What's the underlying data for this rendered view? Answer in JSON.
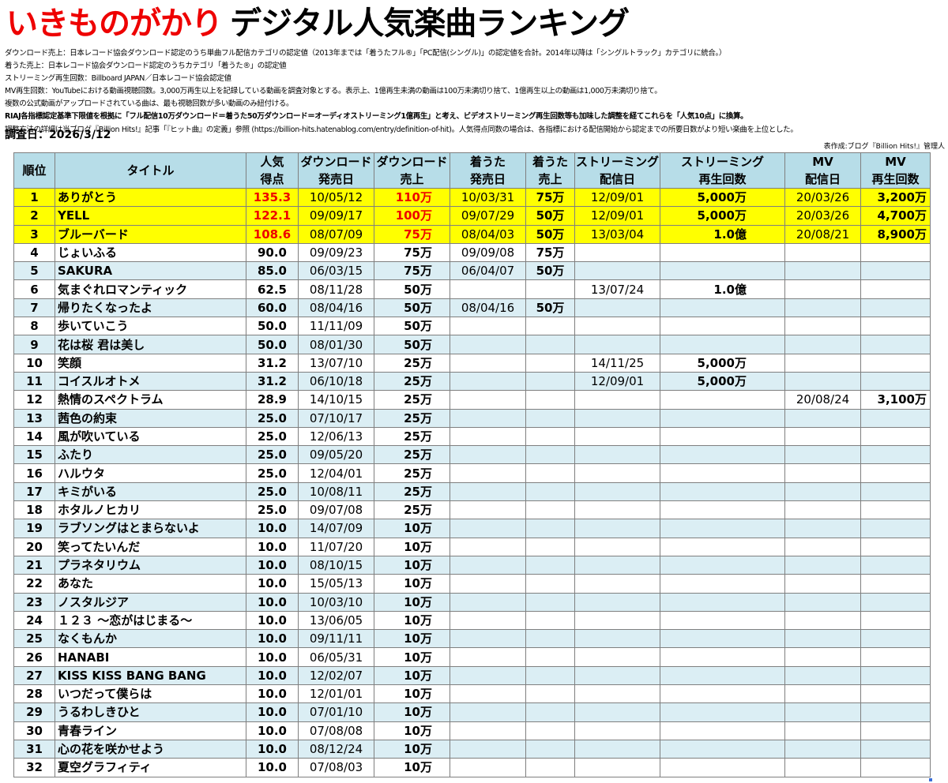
{
  "title": {
    "artist": "いきものがかり",
    "rest": "デジタル人気楽曲ランキング"
  },
  "notes": [
    "ダウンロード売上：日本レコード協会ダウンロード認定のうち単曲フル配信カテゴリの認定値（2013年までは「着うたフル®」「PC配信(シングル)」の認定値を合計。2014年以降は「シングルトラック」カテゴリに統合。）",
    "着うた売上：日本レコード協会ダウンロード認定のうちカテゴリ「着うた®」の認定値",
    "ストリーミング再生回数：Billboard JAPAN／日本レコード協会認定値",
    "MV再生回数：YouTubeにおける動画視聴回数。3,000万再生以上を記録している動画を調査対象とする。表示上、1億再生未満の動画は100万未満切り捨て、1億再生以上の動画は1,000万未満切り捨て。",
    "複数の公式動画がアップロードされている曲は、最も視聴回数が多い動画のみ紐付ける。",
    "RIAJ各指標認定基準下限値を根拠に「フル配信10万ダウンロード＝着うた50万ダウンロード＝オーディオストリーミング1億再生」と考え、ビデオストリーミング再生回数等も加味した調整を経てこれらを「人気10点」に換算。",
    "調整方法の詳細は当ブログ『Billion Hits!』記事「『ヒット曲』の定義」参照 (https://billion-hits.hatenablog.com/entry/definition-of-hit)。人気得点同数の場合は、各指標における配信開始から認定までの所要日数がより短い楽曲を上位とした。"
  ],
  "survey_date": "調査日：2026/3/12",
  "credit": "表作成:ブログ『Billion Hits!』管理人",
  "table": {
    "headers": {
      "rank": "順位",
      "title": "タイトル",
      "score": [
        "人気",
        "得点"
      ],
      "dl_date": [
        "ダウンロード",
        "発売日"
      ],
      "dl_sales": [
        "ダウンロード",
        "売上"
      ],
      "chaku_date": [
        "着うた",
        "発売日"
      ],
      "chaku_sales": [
        "着うた",
        "売上"
      ],
      "st_date": [
        "ストリーミング",
        "配信日"
      ],
      "st_plays": [
        "ストリーミング",
        "再生回数"
      ],
      "mv_date": [
        "MV",
        "配信日"
      ],
      "mv_plays": [
        "MV",
        "再生回数"
      ]
    },
    "rows": [
      {
        "rank": "1",
        "title": "ありがとう",
        "score": "135.3",
        "dl_date": "10/05/12",
        "dl_sales": "110万",
        "chaku_date": "10/03/31",
        "chaku_sales": "75万",
        "st_date": "12/09/01",
        "st_plays": "5,000万",
        "mv_date": "20/03/26",
        "mv_plays": "3,200万"
      },
      {
        "rank": "2",
        "title": "YELL",
        "score": "122.1",
        "dl_date": "09/09/17",
        "dl_sales": "100万",
        "chaku_date": "09/07/29",
        "chaku_sales": "50万",
        "st_date": "12/09/01",
        "st_plays": "5,000万",
        "mv_date": "20/03/26",
        "mv_plays": "4,700万"
      },
      {
        "rank": "3",
        "title": "ブルーバード",
        "score": "108.6",
        "dl_date": "08/07/09",
        "dl_sales": "75万",
        "chaku_date": "08/04/03",
        "chaku_sales": "50万",
        "st_date": "13/03/04",
        "st_plays": "1.0億",
        "mv_date": "20/08/21",
        "mv_plays": "8,900万"
      },
      {
        "rank": "4",
        "title": "じょいふる",
        "score": "90.0",
        "dl_date": "09/09/23",
        "dl_sales": "75万",
        "chaku_date": "09/09/08",
        "chaku_sales": "75万",
        "st_date": "",
        "st_plays": "",
        "mv_date": "",
        "mv_plays": ""
      },
      {
        "rank": "5",
        "title": "SAKURA",
        "score": "85.0",
        "dl_date": "06/03/15",
        "dl_sales": "75万",
        "chaku_date": "06/04/07",
        "chaku_sales": "50万",
        "st_date": "",
        "st_plays": "",
        "mv_date": "",
        "mv_plays": ""
      },
      {
        "rank": "6",
        "title": "気まぐれロマンティック",
        "score": "62.5",
        "dl_date": "08/11/28",
        "dl_sales": "50万",
        "chaku_date": "",
        "chaku_sales": "",
        "st_date": "13/07/24",
        "st_plays": "1.0億",
        "mv_date": "",
        "mv_plays": ""
      },
      {
        "rank": "7",
        "title": "帰りたくなったよ",
        "score": "60.0",
        "dl_date": "08/04/16",
        "dl_sales": "50万",
        "chaku_date": "08/04/16",
        "chaku_sales": "50万",
        "st_date": "",
        "st_plays": "",
        "mv_date": "",
        "mv_plays": ""
      },
      {
        "rank": "8",
        "title": "歩いていこう",
        "score": "50.0",
        "dl_date": "11/11/09",
        "dl_sales": "50万",
        "chaku_date": "",
        "chaku_sales": "",
        "st_date": "",
        "st_plays": "",
        "mv_date": "",
        "mv_plays": ""
      },
      {
        "rank": "9",
        "title": "花は桜 君は美し",
        "score": "50.0",
        "dl_date": "08/01/30",
        "dl_sales": "50万",
        "chaku_date": "",
        "chaku_sales": "",
        "st_date": "",
        "st_plays": "",
        "mv_date": "",
        "mv_plays": ""
      },
      {
        "rank": "10",
        "title": "笑顔",
        "score": "31.2",
        "dl_date": "13/07/10",
        "dl_sales": "25万",
        "chaku_date": "",
        "chaku_sales": "",
        "st_date": "14/11/25",
        "st_plays": "5,000万",
        "mv_date": "",
        "mv_plays": ""
      },
      {
        "rank": "11",
        "title": "コイスルオトメ",
        "score": "31.2",
        "dl_date": "06/10/18",
        "dl_sales": "25万",
        "chaku_date": "",
        "chaku_sales": "",
        "st_date": "12/09/01",
        "st_plays": "5,000万",
        "mv_date": "",
        "mv_plays": ""
      },
      {
        "rank": "12",
        "title": "熱情のスペクトラム",
        "score": "28.9",
        "dl_date": "14/10/15",
        "dl_sales": "25万",
        "chaku_date": "",
        "chaku_sales": "",
        "st_date": "",
        "st_plays": "",
        "mv_date": "20/08/24",
        "mv_plays": "3,100万"
      },
      {
        "rank": "13",
        "title": "茜色の約束",
        "score": "25.0",
        "dl_date": "07/10/17",
        "dl_sales": "25万",
        "chaku_date": "",
        "chaku_sales": "",
        "st_date": "",
        "st_plays": "",
        "mv_date": "",
        "mv_plays": ""
      },
      {
        "rank": "14",
        "title": "風が吹いている",
        "score": "25.0",
        "dl_date": "12/06/13",
        "dl_sales": "25万",
        "chaku_date": "",
        "chaku_sales": "",
        "st_date": "",
        "st_plays": "",
        "mv_date": "",
        "mv_plays": ""
      },
      {
        "rank": "15",
        "title": "ふたり",
        "score": "25.0",
        "dl_date": "09/05/20",
        "dl_sales": "25万",
        "chaku_date": "",
        "chaku_sales": "",
        "st_date": "",
        "st_plays": "",
        "mv_date": "",
        "mv_plays": ""
      },
      {
        "rank": "16",
        "title": "ハルウタ",
        "score": "25.0",
        "dl_date": "12/04/01",
        "dl_sales": "25万",
        "chaku_date": "",
        "chaku_sales": "",
        "st_date": "",
        "st_plays": "",
        "mv_date": "",
        "mv_plays": ""
      },
      {
        "rank": "17",
        "title": "キミがいる",
        "score": "25.0",
        "dl_date": "10/08/11",
        "dl_sales": "25万",
        "chaku_date": "",
        "chaku_sales": "",
        "st_date": "",
        "st_plays": "",
        "mv_date": "",
        "mv_plays": ""
      },
      {
        "rank": "18",
        "title": "ホタルノヒカリ",
        "score": "25.0",
        "dl_date": "09/07/08",
        "dl_sales": "25万",
        "chaku_date": "",
        "chaku_sales": "",
        "st_date": "",
        "st_plays": "",
        "mv_date": "",
        "mv_plays": ""
      },
      {
        "rank": "19",
        "title": "ラブソングはとまらないよ",
        "score": "10.0",
        "dl_date": "14/07/09",
        "dl_sales": "10万",
        "chaku_date": "",
        "chaku_sales": "",
        "st_date": "",
        "st_plays": "",
        "mv_date": "",
        "mv_plays": ""
      },
      {
        "rank": "20",
        "title": "笑ってたいんだ",
        "score": "10.0",
        "dl_date": "11/07/20",
        "dl_sales": "10万",
        "chaku_date": "",
        "chaku_sales": "",
        "st_date": "",
        "st_plays": "",
        "mv_date": "",
        "mv_plays": ""
      },
      {
        "rank": "21",
        "title": "プラネタリウム",
        "score": "10.0",
        "dl_date": "08/10/15",
        "dl_sales": "10万",
        "chaku_date": "",
        "chaku_sales": "",
        "st_date": "",
        "st_plays": "",
        "mv_date": "",
        "mv_plays": ""
      },
      {
        "rank": "22",
        "title": "あなた",
        "score": "10.0",
        "dl_date": "15/05/13",
        "dl_sales": "10万",
        "chaku_date": "",
        "chaku_sales": "",
        "st_date": "",
        "st_plays": "",
        "mv_date": "",
        "mv_plays": ""
      },
      {
        "rank": "23",
        "title": "ノスタルジア",
        "score": "10.0",
        "dl_date": "10/03/10",
        "dl_sales": "10万",
        "chaku_date": "",
        "chaku_sales": "",
        "st_date": "",
        "st_plays": "",
        "mv_date": "",
        "mv_plays": ""
      },
      {
        "rank": "24",
        "title": "１２３ ～恋がはじまる～",
        "score": "10.0",
        "dl_date": "13/06/05",
        "dl_sales": "10万",
        "chaku_date": "",
        "chaku_sales": "",
        "st_date": "",
        "st_plays": "",
        "mv_date": "",
        "mv_plays": ""
      },
      {
        "rank": "25",
        "title": "なくもんか",
        "score": "10.0",
        "dl_date": "09/11/11",
        "dl_sales": "10万",
        "chaku_date": "",
        "chaku_sales": "",
        "st_date": "",
        "st_plays": "",
        "mv_date": "",
        "mv_plays": ""
      },
      {
        "rank": "26",
        "title": "HANABI",
        "score": "10.0",
        "dl_date": "06/05/31",
        "dl_sales": "10万",
        "chaku_date": "",
        "chaku_sales": "",
        "st_date": "",
        "st_plays": "",
        "mv_date": "",
        "mv_plays": ""
      },
      {
        "rank": "27",
        "title": "KISS KISS BANG BANG",
        "score": "10.0",
        "dl_date": "12/02/07",
        "dl_sales": "10万",
        "chaku_date": "",
        "chaku_sales": "",
        "st_date": "",
        "st_plays": "",
        "mv_date": "",
        "mv_plays": ""
      },
      {
        "rank": "28",
        "title": "いつだって僕らは",
        "score": "10.0",
        "dl_date": "12/01/01",
        "dl_sales": "10万",
        "chaku_date": "",
        "chaku_sales": "",
        "st_date": "",
        "st_plays": "",
        "mv_date": "",
        "mv_plays": ""
      },
      {
        "rank": "29",
        "title": "うるわしきひと",
        "score": "10.0",
        "dl_date": "07/01/10",
        "dl_sales": "10万",
        "chaku_date": "",
        "chaku_sales": "",
        "st_date": "",
        "st_plays": "",
        "mv_date": "",
        "mv_plays": ""
      },
      {
        "rank": "30",
        "title": "青春ライン",
        "score": "10.0",
        "dl_date": "07/08/08",
        "dl_sales": "10万",
        "chaku_date": "",
        "chaku_sales": "",
        "st_date": "",
        "st_plays": "",
        "mv_date": "",
        "mv_plays": ""
      },
      {
        "rank": "31",
        "title": "心の花を咲かせよう",
        "score": "10.0",
        "dl_date": "08/12/24",
        "dl_sales": "10万",
        "chaku_date": "",
        "chaku_sales": "",
        "st_date": "",
        "st_plays": "",
        "mv_date": "",
        "mv_plays": ""
      },
      {
        "rank": "32",
        "title": "夏空グラフィティ",
        "score": "10.0",
        "dl_date": "07/08/03",
        "dl_sales": "10万",
        "chaku_date": "",
        "chaku_sales": "",
        "st_date": "",
        "st_plays": "",
        "mv_date": "",
        "mv_plays": ""
      }
    ]
  },
  "colors": {
    "header_bg": "#b7dde8",
    "band_bg": "#dbeef4",
    "highlight_bg": "#ffff00",
    "accent_red": "#ee0000"
  }
}
